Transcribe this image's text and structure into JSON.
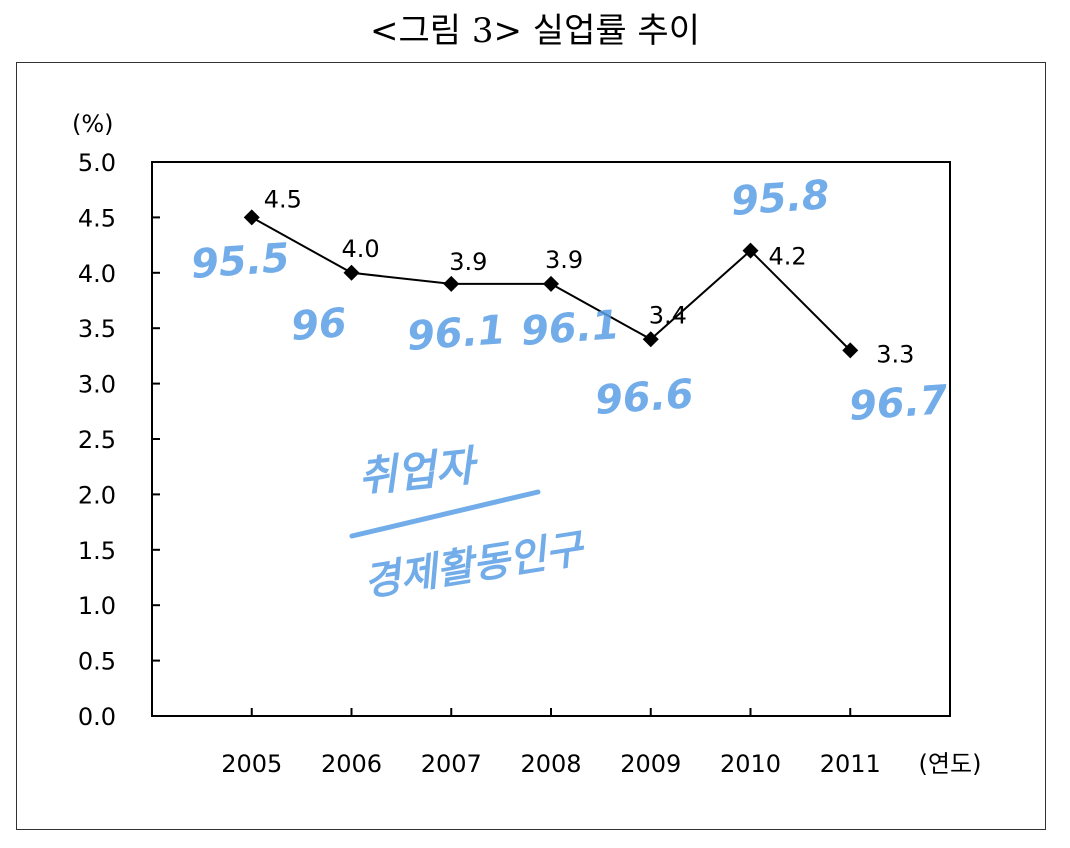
{
  "title": "<그림 3> 실업률 추이",
  "chart_data": {
    "type": "line",
    "title": "<그림 3> 실업률 추이",
    "ylabel": "(%)",
    "xlabel": "(연도)",
    "ylim": [
      0,
      5
    ],
    "yticks": [
      "0.0",
      "0.5",
      "1.0",
      "1.5",
      "2.0",
      "2.5",
      "3.0",
      "3.5",
      "4.0",
      "4.5",
      "5.0"
    ],
    "categories": [
      "2005",
      "2006",
      "2007",
      "2008",
      "2009",
      "2010",
      "2011"
    ],
    "values": [
      4.5,
      4.0,
      3.9,
      3.9,
      3.4,
      4.2,
      3.3
    ],
    "data_labels": [
      "4.5",
      "4.0",
      "3.9",
      "3.9",
      "3.4",
      "4.2",
      "3.3"
    ],
    "grid": false,
    "marker": "diamond",
    "line_color": "#000000",
    "annotations": {
      "handwritten_values": [
        "95.5",
        "96",
        "96.1",
        "96.1",
        "96.6",
        "95.8",
        "96.7"
      ],
      "fraction_numerator": "취업자",
      "fraction_denominator": "경제활동인구",
      "color": "#5a9ee6"
    }
  }
}
